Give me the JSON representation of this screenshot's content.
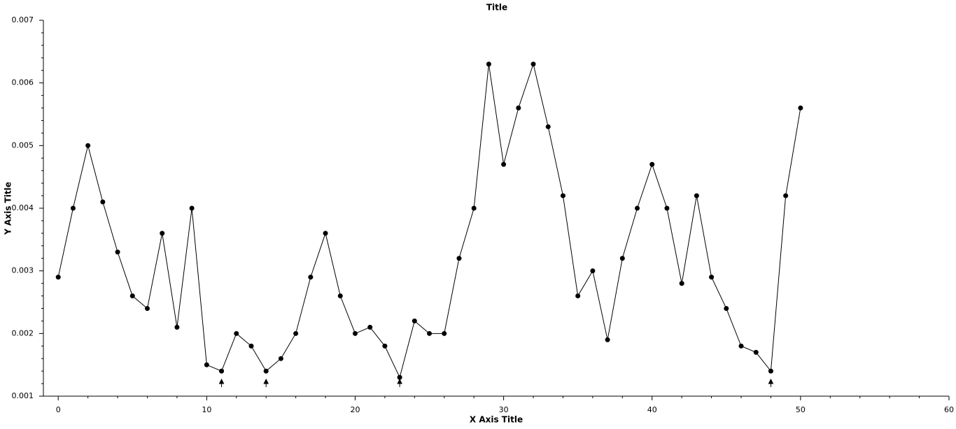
{
  "chart_data": {
    "type": "line",
    "title": "Title",
    "x_label": "X Axis Title",
    "y_label": "Y Axis Title",
    "x": [
      0,
      1,
      2,
      3,
      4,
      5,
      6,
      7,
      8,
      9,
      10,
      11,
      12,
      13,
      14,
      15,
      16,
      17,
      18,
      19,
      20,
      21,
      22,
      23,
      24,
      25,
      26,
      27,
      28,
      29,
      30,
      31,
      32,
      33,
      34,
      35,
      36,
      37,
      38,
      39,
      40,
      41,
      42,
      43,
      44,
      45,
      46,
      47,
      48,
      49,
      50
    ],
    "series": [
      {
        "color": "#000000",
        "values": [
          0.0029,
          0.004,
          0.005,
          0.0041,
          0.0033,
          0.0026,
          0.0024,
          0.0036,
          0.0021,
          0.004,
          0.0015,
          0.0014,
          0.002,
          0.0018,
          0.0014,
          0.0016,
          0.002,
          0.0029,
          0.0036,
          0.0026,
          0.002,
          0.0021,
          0.0018,
          0.0013,
          0.0022,
          0.002,
          0.002,
          0.0032,
          0.004,
          0.0063,
          0.0047,
          0.0056,
          0.0063,
          0.0053,
          0.0042,
          0.0026,
          0.003,
          0.0019,
          0.0032,
          0.004,
          0.0047,
          0.004,
          0.0028,
          0.0042,
          0.0029,
          0.0024,
          0.0018,
          0.0017,
          0.0014,
          0.0042,
          0.0056
        ]
      }
    ],
    "arrows_x": [
      11,
      14,
      23,
      48
    ],
    "xlim": [
      -1,
      60
    ],
    "xticks": [
      0,
      10,
      20,
      30,
      40,
      50,
      60
    ],
    "ylim": [
      0.001,
      0.007
    ],
    "yticks": [
      0.001,
      0.002,
      0.003,
      0.004,
      0.005,
      0.006,
      0.007
    ]
  }
}
